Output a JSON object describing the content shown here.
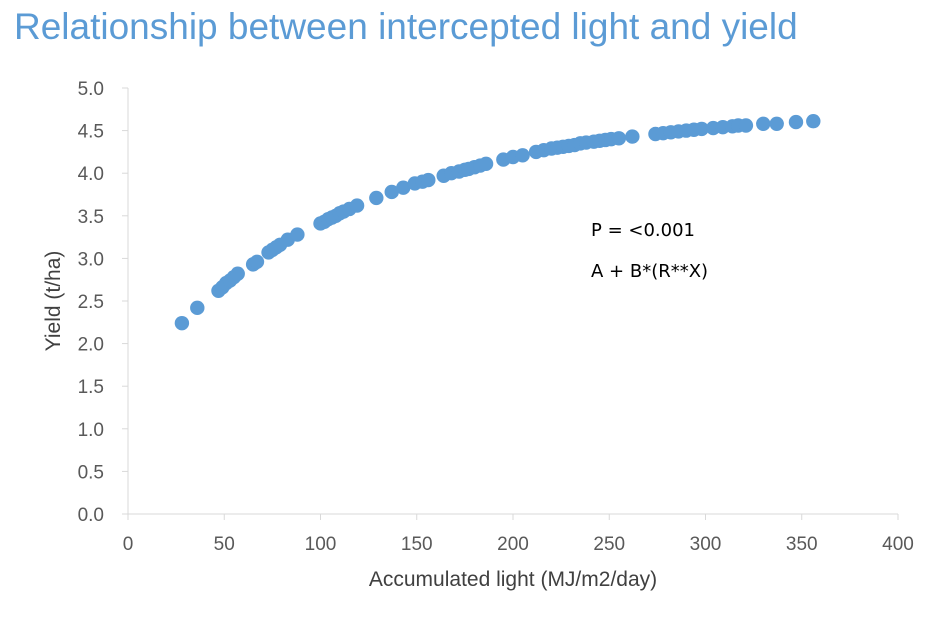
{
  "title": "Relationship between intercepted light and yield",
  "colors": {
    "title": "#5b9bd5",
    "points": "#5b9bd5",
    "axis": "#d9d9d9",
    "tick_text": "#595959",
    "axis_title_text": "#404040"
  },
  "chart_data": {
    "type": "scatter",
    "title": "Relationship between intercepted light and yield",
    "xlabel": "Accumulated light (MJ/m2/day)",
    "ylabel": "Yield (t/ha)",
    "xlim": [
      0,
      400
    ],
    "ylim": [
      0,
      5
    ],
    "xticks": [
      "0",
      "50",
      "100",
      "150",
      "200",
      "250",
      "300",
      "350",
      "400"
    ],
    "yticks": [
      "0.0",
      "0.5",
      "1.0",
      "1.5",
      "2.0",
      "2.5",
      "3.0",
      "3.5",
      "4.0",
      "4.5",
      "5.0"
    ],
    "grid": false,
    "legend": false,
    "annotations": [
      "P = <0.001",
      "A + B*(R**X)"
    ],
    "series": [
      {
        "points": [
          [
            28,
            2.24
          ],
          [
            36,
            2.42
          ],
          [
            47,
            2.62
          ],
          [
            49,
            2.66
          ],
          [
            51,
            2.71
          ],
          [
            53,
            2.74
          ],
          [
            55,
            2.78
          ],
          [
            57,
            2.82
          ],
          [
            65,
            2.93
          ],
          [
            67,
            2.96
          ],
          [
            73,
            3.07
          ],
          [
            75,
            3.1
          ],
          [
            77,
            3.13
          ],
          [
            79,
            3.16
          ],
          [
            83,
            3.22
          ],
          [
            88,
            3.28
          ],
          [
            100,
            3.41
          ],
          [
            102,
            3.43
          ],
          [
            104,
            3.46
          ],
          [
            106,
            3.48
          ],
          [
            108,
            3.5
          ],
          [
            110,
            3.53
          ],
          [
            112,
            3.55
          ],
          [
            115,
            3.58
          ],
          [
            119,
            3.62
          ],
          [
            129,
            3.71
          ],
          [
            137,
            3.78
          ],
          [
            143,
            3.83
          ],
          [
            149,
            3.88
          ],
          [
            153,
            3.9
          ],
          [
            156,
            3.92
          ],
          [
            164,
            3.97
          ],
          [
            168,
            4.0
          ],
          [
            172,
            4.02
          ],
          [
            175,
            4.04
          ],
          [
            177,
            4.05
          ],
          [
            180,
            4.07
          ],
          [
            183,
            4.09
          ],
          [
            186,
            4.11
          ],
          [
            195,
            4.16
          ],
          [
            200,
            4.19
          ],
          [
            205,
            4.21
          ],
          [
            212,
            4.25
          ],
          [
            216,
            4.27
          ],
          [
            220,
            4.29
          ],
          [
            223,
            4.3
          ],
          [
            226,
            4.31
          ],
          [
            229,
            4.32
          ],
          [
            232,
            4.33
          ],
          [
            235,
            4.35
          ],
          [
            238,
            4.36
          ],
          [
            242,
            4.37
          ],
          [
            245,
            4.38
          ],
          [
            248,
            4.39
          ],
          [
            251,
            4.4
          ],
          [
            255,
            4.41
          ],
          [
            262,
            4.43
          ],
          [
            274,
            4.46
          ],
          [
            278,
            4.47
          ],
          [
            282,
            4.48
          ],
          [
            286,
            4.49
          ],
          [
            290,
            4.5
          ],
          [
            294,
            4.51
          ],
          [
            298,
            4.52
          ],
          [
            304,
            4.53
          ],
          [
            309,
            4.54
          ],
          [
            314,
            4.55
          ],
          [
            317,
            4.56
          ],
          [
            321,
            4.56
          ],
          [
            330,
            4.58
          ],
          [
            337,
            4.58
          ],
          [
            347,
            4.6
          ],
          [
            356,
            4.61
          ]
        ]
      }
    ]
  }
}
